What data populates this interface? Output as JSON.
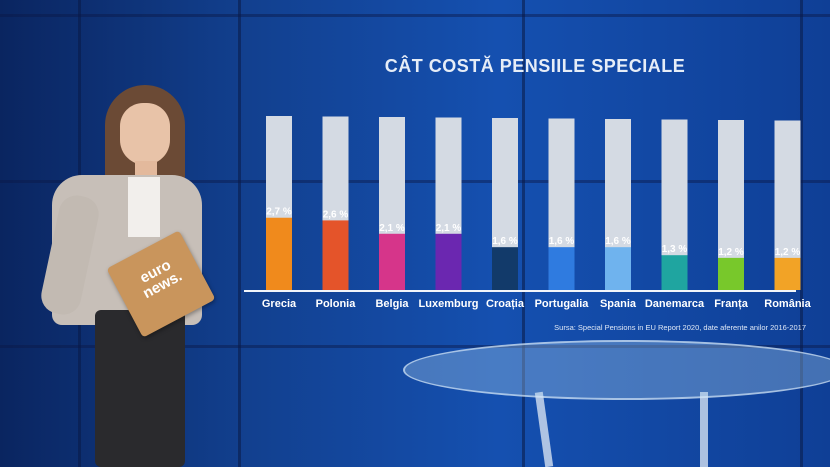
{
  "screen": {
    "title": "CÂT COSTĂ PENSIILE SPECIALE",
    "source": "Sursa: Special Pensions in EU Report 2020, date aferente anilor 2016-2017"
  },
  "logo": {
    "text_line1": "euro",
    "text_line2": "news."
  },
  "chart_data": {
    "type": "bar",
    "title": "CÂT COSTĂ PENSIILE SPECIALE",
    "categories": [
      "Grecia",
      "Polonia",
      "Belgia",
      "Luxemburg",
      "Croația",
      "Portugalia",
      "Spania",
      "Danemarca",
      "Franța",
      "România"
    ],
    "values": [
      2.7,
      2.6,
      2.1,
      2.1,
      1.6,
      1.6,
      1.6,
      1.3,
      1.2,
      1.2
    ],
    "value_labels": [
      "2,7 %",
      "2,6 %",
      "2,1 %",
      "2,1 %",
      "1,6 %",
      "1,6 %",
      "1,6 %",
      "1,3 %",
      "1,2 %",
      "1,2 %"
    ],
    "colors": [
      "#f08a1c",
      "#e4542a",
      "#d6358a",
      "#6b27b0",
      "#123a6a",
      "#2f7be0",
      "#6fb3ee",
      "#1fa5a0",
      "#78c82b",
      "#f2a326"
    ],
    "ylim": [
      0,
      6.5
    ],
    "source": "Sursa: Special Pensions in EU Report 2020, date aferente anilor 2016-2017"
  }
}
